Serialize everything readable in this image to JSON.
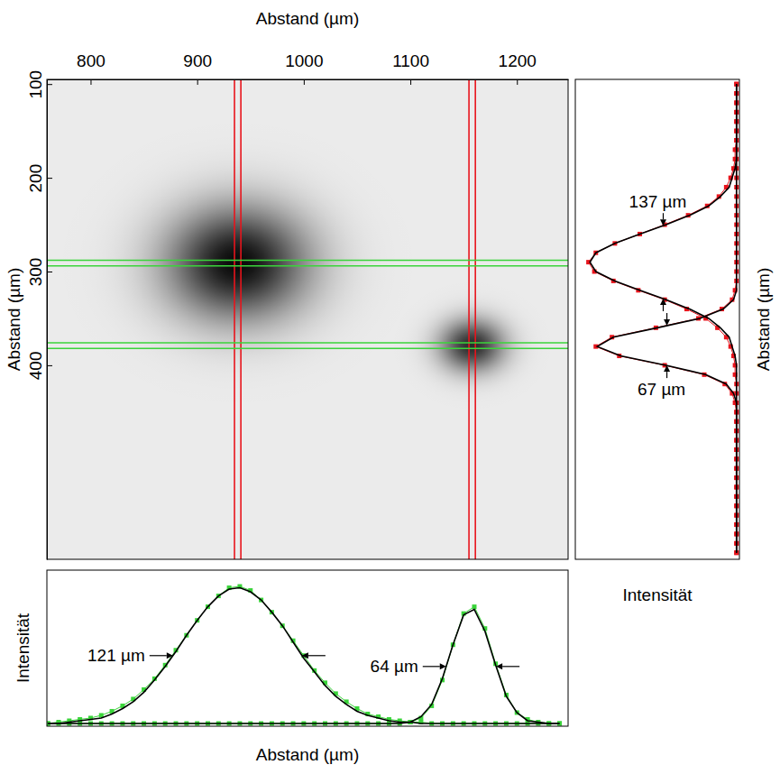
{
  "chart_data": [
    {
      "type": "image",
      "x_label": "Abstand (µm)",
      "y_label": "Abstand (µm)",
      "xlim": [
        759,
        1248
      ],
      "ylim": [
        95,
        607
      ],
      "xticks": [
        800,
        900,
        1000,
        1100,
        1200
      ],
      "yticks": [
        100,
        200,
        300,
        400
      ],
      "spots": {
        "x": [
          938,
          1158
        ],
        "y": [
          291,
          379
        ],
        "fwhm_x": [
          110,
          50
        ],
        "fwhm_y": [
          100,
          46
        ],
        "peak": [
          1,
          0.85
        ]
      },
      "x_cuts": {
        "color": "#e8141c",
        "values": [
          935,
          941,
          1155,
          1161
        ]
      },
      "y_cuts": {
        "color": "#3ad43a",
        "values": [
          288,
          294,
          376,
          382
        ]
      }
    },
    {
      "type": "line",
      "x_label": "Abstand (µm)",
      "y_label": "Intensität",
      "x": [
        760,
        770,
        780,
        790,
        800,
        810,
        820,
        830,
        840,
        850,
        860,
        870,
        880,
        890,
        900,
        910,
        920,
        930,
        940,
        950,
        960,
        970,
        980,
        990,
        1000,
        1010,
        1020,
        1030,
        1040,
        1050,
        1060,
        1070,
        1080,
        1090,
        1100,
        1110,
        1120,
        1130,
        1140,
        1150,
        1160,
        1170,
        1180,
        1190,
        1200,
        1210,
        1220,
        1230,
        1240
      ],
      "xlim": [
        759,
        1248
      ],
      "ylim": [
        0,
        1.15
      ],
      "tick_labels": false,
      "series": [
        {
          "color": "#3ad43a",
          "marker": "square",
          "line_style": "solid",
          "values": [
            0.02,
            0.03,
            0.04,
            0.05,
            0.06,
            0.08,
            0.11,
            0.15,
            0.2,
            0.27,
            0.35,
            0.45,
            0.56,
            0.67,
            0.78,
            0.88,
            0.96,
            1.02,
            1.03,
            1.0,
            0.93,
            0.84,
            0.74,
            0.63,
            0.52,
            0.41,
            0.32,
            0.24,
            0.18,
            0.13,
            0.09,
            0.07,
            0.05,
            0.04,
            0.03,
            0.03,
            0.02,
            0.02,
            0.02,
            0.02,
            0.02,
            0.02,
            0.02,
            0.02,
            0.02,
            0.02,
            0.02,
            0.02,
            0.02
          ]
        },
        {
          "color": "#000000",
          "line_style": "solid",
          "label": "121 µm",
          "values": [
            0.02,
            0.02,
            0.03,
            0.04,
            0.05,
            0.06,
            0.09,
            0.13,
            0.18,
            0.25,
            0.34,
            0.44,
            0.55,
            0.67,
            0.78,
            0.88,
            0.96,
            1.01,
            1.02,
            0.99,
            0.93,
            0.84,
            0.74,
            0.62,
            0.5,
            0.4,
            0.3,
            0.22,
            0.16,
            0.11,
            0.08,
            0.06,
            0.04,
            0.03,
            0.03,
            0.02,
            0.02,
            0.02,
            0.02,
            0.02,
            0.02,
            0.02,
            0.02,
            0.02,
            0.02,
            0.02,
            0.02,
            0.02,
            0.02
          ]
        },
        {
          "color": "#3ad43a",
          "marker": "square",
          "line_style": "solid",
          "values": [
            0.02,
            0.02,
            0.02,
            0.02,
            0.02,
            0.02,
            0.02,
            0.02,
            0.02,
            0.02,
            0.02,
            0.02,
            0.02,
            0.02,
            0.02,
            0.02,
            0.02,
            0.02,
            0.02,
            0.02,
            0.02,
            0.02,
            0.02,
            0.02,
            0.02,
            0.02,
            0.02,
            0.02,
            0.02,
            0.02,
            0.02,
            0.02,
            0.02,
            0.02,
            0.03,
            0.06,
            0.15,
            0.34,
            0.6,
            0.83,
            0.88,
            0.72,
            0.46,
            0.23,
            0.1,
            0.05,
            0.03,
            0.02,
            0.02
          ]
        },
        {
          "color": "#000000",
          "line_style": "solid",
          "label": "64 µm",
          "values": [
            0.02,
            0.02,
            0.02,
            0.02,
            0.02,
            0.02,
            0.02,
            0.02,
            0.02,
            0.02,
            0.02,
            0.02,
            0.02,
            0.02,
            0.02,
            0.02,
            0.02,
            0.02,
            0.02,
            0.02,
            0.02,
            0.02,
            0.02,
            0.02,
            0.02,
            0.02,
            0.02,
            0.02,
            0.02,
            0.02,
            0.02,
            0.02,
            0.02,
            0.02,
            0.03,
            0.07,
            0.16,
            0.35,
            0.6,
            0.82,
            0.86,
            0.7,
            0.45,
            0.22,
            0.1,
            0.04,
            0.03,
            0.02,
            0.02
          ]
        }
      ]
    },
    {
      "type": "line",
      "orientation": "horizontal",
      "x_label": "Intensität",
      "y_label": "Abstand (µm)",
      "y": [
        100,
        110,
        120,
        130,
        140,
        150,
        160,
        170,
        180,
        190,
        200,
        210,
        220,
        230,
        240,
        250,
        260,
        270,
        280,
        290,
        300,
        310,
        320,
        330,
        340,
        350,
        360,
        370,
        380,
        390,
        400,
        410,
        420,
        430,
        440,
        450,
        460,
        470,
        480,
        490,
        500,
        510,
        520,
        530,
        540,
        550,
        560,
        570,
        580,
        590,
        600
      ],
      "ylim": [
        95,
        607
      ],
      "xlim": [
        0,
        1.12
      ],
      "tick_labels": false,
      "series": [
        {
          "color": "#e8141c",
          "marker": "square",
          "line_style": "solid",
          "values": [
            0.02,
            0.02,
            0.02,
            0.02,
            0.02,
            0.02,
            0.02,
            0.03,
            0.03,
            0.04,
            0.06,
            0.09,
            0.14,
            0.22,
            0.35,
            0.51,
            0.68,
            0.85,
            0.98,
            1.03,
            0.99,
            0.86,
            0.69,
            0.51,
            0.36,
            0.23,
            0.15,
            0.09,
            0.06,
            0.04,
            0.03,
            0.03,
            0.02,
            0.02,
            0.02,
            0.02,
            0.02,
            0.02,
            0.02,
            0.02,
            0.02,
            0.02,
            0.02,
            0.02,
            0.02,
            0.02,
            0.02,
            0.02,
            0.02,
            0.02,
            0.02
          ]
        },
        {
          "color": "#000000",
          "line_style": "solid",
          "label": "137 µm",
          "values": [
            0.02,
            0.02,
            0.02,
            0.02,
            0.02,
            0.02,
            0.02,
            0.02,
            0.02,
            0.03,
            0.05,
            0.07,
            0.13,
            0.21,
            0.34,
            0.5,
            0.68,
            0.85,
            0.98,
            1.02,
            0.98,
            0.85,
            0.68,
            0.5,
            0.34,
            0.21,
            0.13,
            0.07,
            0.05,
            0.03,
            0.02,
            0.02,
            0.02,
            0.02,
            0.02,
            0.02,
            0.02,
            0.02,
            0.02,
            0.02,
            0.02,
            0.02,
            0.02,
            0.02,
            0.02,
            0.02,
            0.02,
            0.02,
            0.02,
            0.02,
            0.02
          ]
        },
        {
          "color": "#e8141c",
          "marker": "square",
          "line_style": "solid",
          "values": [
            0.02,
            0.02,
            0.02,
            0.02,
            0.02,
            0.02,
            0.02,
            0.02,
            0.02,
            0.02,
            0.02,
            0.02,
            0.02,
            0.02,
            0.02,
            0.02,
            0.02,
            0.02,
            0.02,
            0.02,
            0.02,
            0.02,
            0.03,
            0.05,
            0.12,
            0.28,
            0.57,
            0.87,
            0.98,
            0.82,
            0.51,
            0.24,
            0.1,
            0.05,
            0.03,
            0.02,
            0.02,
            0.02,
            0.02,
            0.02,
            0.02,
            0.02,
            0.02,
            0.02,
            0.02,
            0.02,
            0.02,
            0.02,
            0.02,
            0.02,
            0.02
          ]
        },
        {
          "color": "#000000",
          "line_style": "solid",
          "label": "67 µm",
          "values": [
            0.02,
            0.02,
            0.02,
            0.02,
            0.02,
            0.02,
            0.02,
            0.02,
            0.02,
            0.02,
            0.02,
            0.02,
            0.02,
            0.02,
            0.02,
            0.02,
            0.02,
            0.02,
            0.02,
            0.02,
            0.02,
            0.02,
            0.02,
            0.04,
            0.11,
            0.27,
            0.56,
            0.86,
            0.97,
            0.81,
            0.5,
            0.23,
            0.09,
            0.04,
            0.02,
            0.02,
            0.02,
            0.02,
            0.02,
            0.02,
            0.02,
            0.02,
            0.02,
            0.02,
            0.02,
            0.02,
            0.02,
            0.02,
            0.02,
            0.02,
            0.02
          ]
        }
      ]
    }
  ]
}
